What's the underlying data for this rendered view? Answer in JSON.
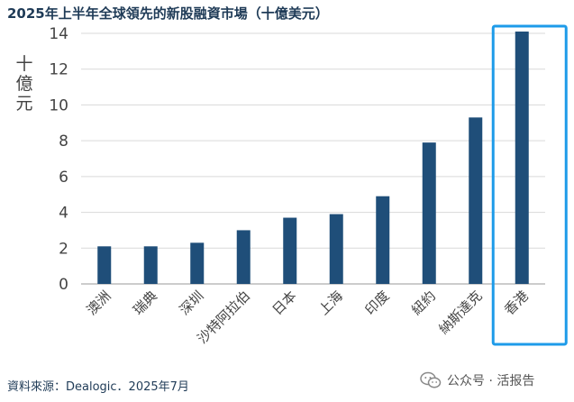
{
  "title": "2025年上半年全球領先的新股融資市場（十億美元）",
  "source": "資料來源：Dealogic．2025年7月",
  "watermark": "公众号 · 活报告",
  "colors": {
    "bar": "#1f4e79",
    "highlight": "#1e9be9",
    "grid": "#d9d9d9"
  },
  "chart_data": {
    "type": "bar",
    "title": "2025年上半年全球領先的新股融資市場（十億美元）",
    "ylabel": "十億元",
    "xlabel": "",
    "ylim": [
      0,
      14
    ],
    "yticks": [
      0,
      2,
      4,
      6,
      8,
      10,
      12,
      14
    ],
    "grid": true,
    "categories": [
      "澳洲",
      "瑞典",
      "深圳",
      "沙特阿拉伯",
      "日本",
      "上海",
      "印度",
      "紐約",
      "納斯達克",
      "香港"
    ],
    "values": [
      2.1,
      2.1,
      2.3,
      3.0,
      3.7,
      3.9,
      4.9,
      7.9,
      9.3,
      14.1
    ],
    "highlighted": "香港"
  }
}
